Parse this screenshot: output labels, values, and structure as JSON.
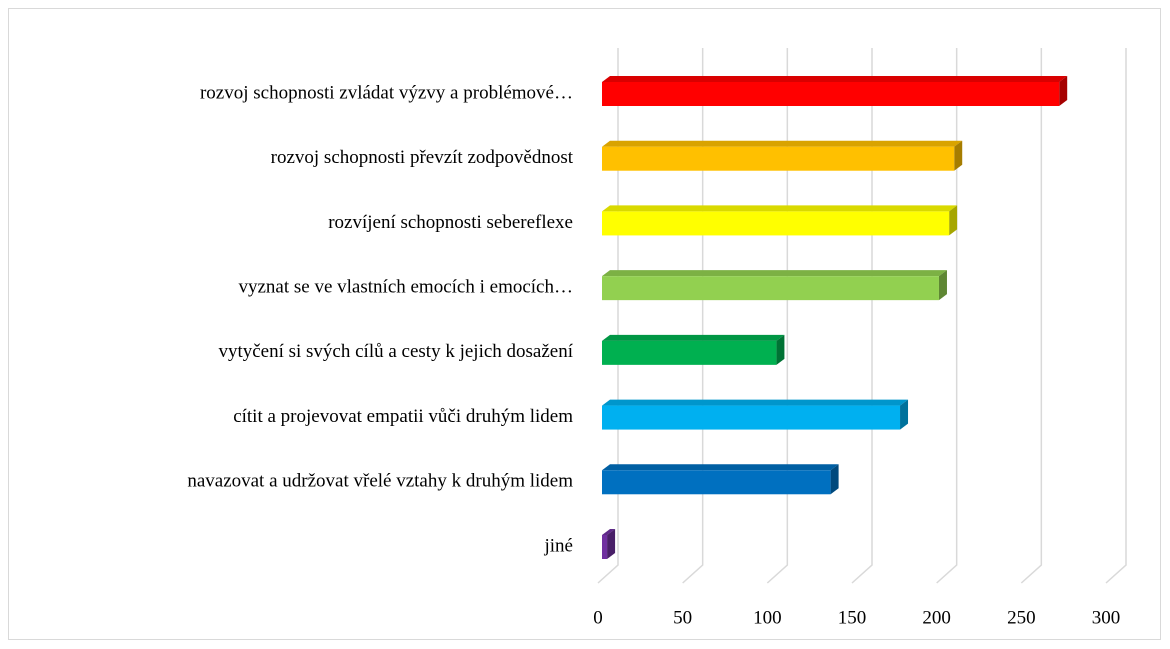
{
  "chart_data": {
    "type": "bar3d_horizontal",
    "categories": [
      "rozvoj schopnosti zvládat výzvy a problémové…",
      "rozvoj schopnosti převzít zodpovědnost",
      "rozvíjení schopnosti sebereflexe",
      "vyznat se ve vlastních emocích i emocích…",
      "vytyčení si svých cílů a cesty k jejich dosažení",
      "cítit a projevovat empatii vůči druhým lidem",
      "navazovat a udržovat vřelé vztahy k druhým lidem",
      "jiné"
    ],
    "values": [
      270,
      208,
      205,
      199,
      103,
      176,
      135,
      3
    ],
    "colors": [
      "#ff0000",
      "#ffc000",
      "#ffff00",
      "#92d050",
      "#00b050",
      "#00b0f0",
      "#0070c0",
      "#7030a0"
    ],
    "xlim": [
      0,
      300
    ],
    "xticks": [
      0,
      50,
      100,
      150,
      200,
      250,
      300
    ],
    "grid": true
  }
}
